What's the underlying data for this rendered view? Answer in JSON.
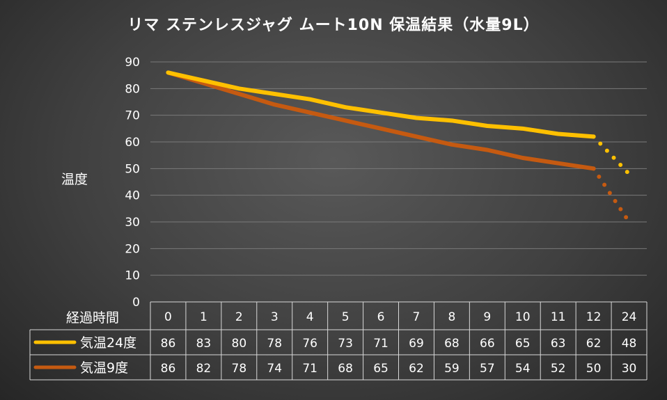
{
  "chart_data": {
    "type": "line",
    "title": "リマ ステンレスジャグ ムート10N 保温結果（水量9L）",
    "ylabel": "温度",
    "xlabel": "経過時間",
    "ylim": [
      0,
      90
    ],
    "yticks": [
      0,
      10,
      20,
      30,
      40,
      50,
      60,
      70,
      80,
      90
    ],
    "grid": true,
    "categories": [
      "0",
      "1",
      "2",
      "3",
      "4",
      "5",
      "6",
      "7",
      "8",
      "9",
      "10",
      "11",
      "12",
      "24"
    ],
    "series": [
      {
        "name": "気温24度",
        "color": "#FFC000",
        "values": [
          86,
          83,
          80,
          78,
          76,
          73,
          71,
          69,
          68,
          66,
          65,
          63,
          62,
          48
        ],
        "dotted_last_segment": true
      },
      {
        "name": "気温9度",
        "color": "#C55A11",
        "values": [
          86,
          82,
          78,
          74,
          71,
          68,
          65,
          62,
          59,
          57,
          54,
          52,
          50,
          30
        ],
        "dotted_last_segment": true
      }
    ],
    "data_table": true
  }
}
